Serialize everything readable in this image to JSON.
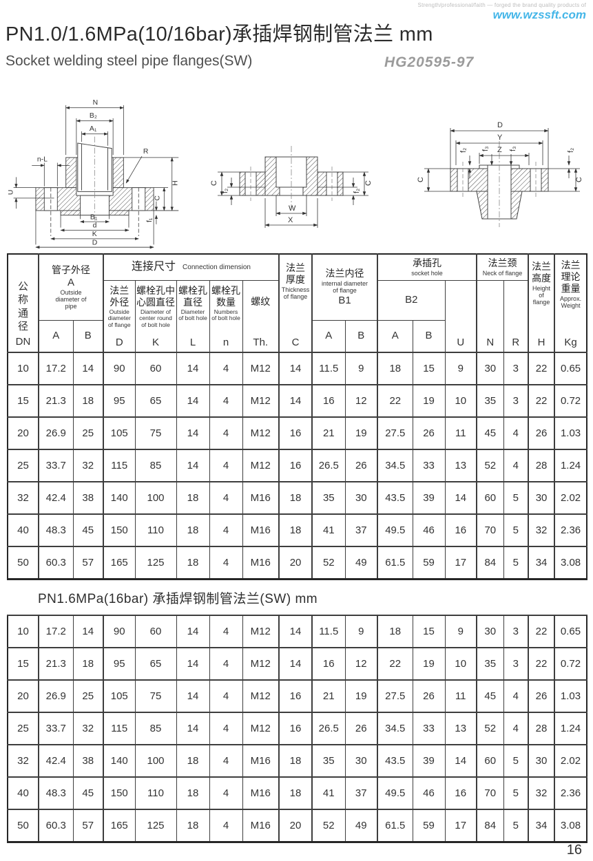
{
  "page": {
    "tagline": "Strength/professional/faith — forged the brand quality products of",
    "website": "www.wzssft.com",
    "title": "PN1.0/1.6MPa(10/16bar)承插焊钢制管法兰 mm",
    "subtitle": "Socket welding steel pipe flanges(SW)",
    "standard_code": "HG20595-97",
    "section2_title": "PN1.6MPa(16bar) 承插焊钢制管法兰(SW) mm",
    "page_number": "16"
  },
  "diagrams": {
    "left": {
      "dim_n": "N",
      "dim_b2": "B₂",
      "dim_a1": "A₁",
      "dim_nl": "n-L",
      "dim_r": "R",
      "dim_u": "U",
      "dim_b1": "B₁",
      "dim_d_small": "d",
      "dim_k": "K",
      "dim_d": "D",
      "dim_h": "H",
      "dim_c": "C",
      "dim_f1": "f₁"
    },
    "middle": {
      "dim_c_left": "C",
      "dim_f2_left": "f₂",
      "dim_w": "W",
      "dim_x": "X",
      "dim_c_right": "C",
      "dim_f2_right": "f₂"
    },
    "right": {
      "dim_d": "D",
      "dim_y": "Y",
      "dim_z": "Z",
      "dim_f2_left": "f₂",
      "dim_f3_left": "f₃",
      "dim_f3_right": "f₃",
      "dim_f2_right": "f₂",
      "dim_c_left": "C",
      "dim_c_right": "C"
    }
  },
  "table": {
    "header": {
      "dn_cn": "公称通径",
      "dn_letter": "DN",
      "pipe_cn": "管子外径",
      "pipe_a": "A",
      "pipe_en": "Outside diameter of pipe",
      "conn_cn": "连接尺寸",
      "conn_en": "Connection dimension",
      "flange_od_cn": "法兰外径",
      "flange_od_en": "Outside diameter of flange",
      "flange_od_letter": "D",
      "bolt_circle_cn": "螺栓孔中心圆直径",
      "bolt_circle_en": "Diameter of center round of bolt hole",
      "bolt_circle_letter": "K",
      "bolt_dia_cn": "螺栓孔直径",
      "bolt_dia_en": "Diameter of bolt hole",
      "bolt_dia_letter": "L",
      "bolt_num_cn": "螺栓孔数量",
      "bolt_num_en": "Numbers of bolt hole",
      "bolt_num_letter": "n",
      "thread_cn": "螺纹",
      "thread_letter": "Th.",
      "thick_cn": "法兰厚度",
      "thick_en": "Thickness of flange",
      "thick_letter": "C",
      "id_cn": "法兰内径",
      "id_en": "internal diameter of flange",
      "id_letter": "B1",
      "socket_cn": "承插孔",
      "socket_en": "socket hole",
      "socket_b2": "B2",
      "u_letter": "U",
      "neck_cn": "法兰颈",
      "neck_en": "Neck of flange",
      "n_letter": "N",
      "r_letter": "R",
      "height_cn": "法兰高度",
      "height_en": "Height of flange",
      "height_letter": "H",
      "weight_cn": "法兰理论重量",
      "weight_en": "Approx. Weight",
      "weight_letter": "Kg",
      "sub_a": "A",
      "sub_b": "B"
    },
    "pn10_rows": [
      [
        "10",
        "17.2",
        "14",
        "90",
        "60",
        "14",
        "4",
        "M12",
        "14",
        "11.5",
        "9",
        "18",
        "15",
        "9",
        "30",
        "3",
        "22",
        "0.65"
      ],
      [
        "15",
        "21.3",
        "18",
        "95",
        "65",
        "14",
        "4",
        "M12",
        "14",
        "16",
        "12",
        "22",
        "19",
        "10",
        "35",
        "3",
        "22",
        "0.72"
      ],
      [
        "20",
        "26.9",
        "25",
        "105",
        "75",
        "14",
        "4",
        "M12",
        "16",
        "21",
        "19",
        "27.5",
        "26",
        "11",
        "45",
        "4",
        "26",
        "1.03"
      ],
      [
        "25",
        "33.7",
        "32",
        "115",
        "85",
        "14",
        "4",
        "M12",
        "16",
        "26.5",
        "26",
        "34.5",
        "33",
        "13",
        "52",
        "4",
        "28",
        "1.24"
      ],
      [
        "32",
        "42.4",
        "38",
        "140",
        "100",
        "18",
        "4",
        "M16",
        "18",
        "35",
        "30",
        "43.5",
        "39",
        "14",
        "60",
        "5",
        "30",
        "2.02"
      ],
      [
        "40",
        "48.3",
        "45",
        "150",
        "110",
        "18",
        "4",
        "M16",
        "18",
        "41",
        "37",
        "49.5",
        "46",
        "16",
        "70",
        "5",
        "32",
        "2.36"
      ],
      [
        "50",
        "60.3",
        "57",
        "165",
        "125",
        "18",
        "4",
        "M16",
        "20",
        "52",
        "49",
        "61.5",
        "59",
        "17",
        "84",
        "5",
        "34",
        "3.08"
      ]
    ],
    "pn16_rows": [
      [
        "10",
        "17.2",
        "14",
        "90",
        "60",
        "14",
        "4",
        "M12",
        "14",
        "11.5",
        "9",
        "18",
        "15",
        "9",
        "30",
        "3",
        "22",
        "0.65"
      ],
      [
        "15",
        "21.3",
        "18",
        "95",
        "65",
        "14",
        "4",
        "M12",
        "14",
        "16",
        "12",
        "22",
        "19",
        "10",
        "35",
        "3",
        "22",
        "0.72"
      ],
      [
        "20",
        "26.9",
        "25",
        "105",
        "75",
        "14",
        "4",
        "M12",
        "16",
        "21",
        "19",
        "27.5",
        "26",
        "11",
        "45",
        "4",
        "26",
        "1.03"
      ],
      [
        "25",
        "33.7",
        "32",
        "115",
        "85",
        "14",
        "4",
        "M12",
        "16",
        "26.5",
        "26",
        "34.5",
        "33",
        "13",
        "52",
        "4",
        "28",
        "1.24"
      ],
      [
        "32",
        "42.4",
        "38",
        "140",
        "100",
        "18",
        "4",
        "M16",
        "18",
        "35",
        "30",
        "43.5",
        "39",
        "14",
        "60",
        "5",
        "30",
        "2.02"
      ],
      [
        "40",
        "48.3",
        "45",
        "150",
        "110",
        "18",
        "4",
        "M16",
        "18",
        "41",
        "37",
        "49.5",
        "46",
        "16",
        "70",
        "5",
        "32",
        "2.36"
      ],
      [
        "50",
        "60.3",
        "57",
        "165",
        "125",
        "18",
        "4",
        "M16",
        "20",
        "52",
        "49",
        "61.5",
        "59",
        "17",
        "84",
        "5",
        "34",
        "3.08"
      ]
    ]
  }
}
